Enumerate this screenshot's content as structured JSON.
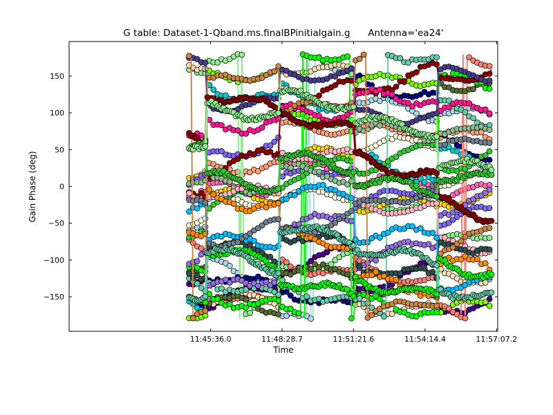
{
  "chart_data": {
    "type": "scatter",
    "title": "G table: Dataset-1-Qband.ms.finalBPinitialgain.g      Antenna='ea24'",
    "xlabel": "Time",
    "ylabel": "Gain Phase (deg)",
    "x_ticks": [
      "11:45:36.0",
      "11:48:28.7",
      "11:51:21.6",
      "11:54:14.4",
      "11:57:07.2"
    ],
    "x_tick_seconds": [
      42336.0,
      42508.7,
      42681.6,
      42854.4,
      43027.2
    ],
    "xlim_seconds": [
      41994,
      43030
    ],
    "xrange_display": [
      "11:44:10",
      "11:57:10"
    ],
    "y_ticks": [
      -150,
      -100,
      -50,
      0,
      50,
      100,
      150
    ],
    "ylim": [
      -197,
      197
    ],
    "grid": false,
    "legend": "none",
    "data_time_range": [
      "11:44:44",
      "11:56:55"
    ],
    "series_colors": [
      "#add8e6",
      "#ffa07a",
      "#90ee90",
      "#000080",
      "#4b0082",
      "#ffd700",
      "#ff69b4",
      "#7cfc00",
      "#00ced1",
      "#fa8072",
      "#f5deb3",
      "#556b2f",
      "#ffffe0",
      "#7b68ee",
      "#00ff00",
      "#66cdaa",
      "#8b0000",
      "#32cd32",
      "#9370db",
      "#8fbc8f",
      "#ff1493",
      "#483d8b",
      "#ffb6c1",
      "#2f4f4f",
      "#00bfff",
      "#cd853f",
      "#ff8c00",
      "#708090"
    ],
    "highlight_series_colors": [
      "#8b0000",
      "#00ff00",
      "#66cdaa",
      "#32cd32",
      "#90ee90"
    ],
    "marker": "circle",
    "phase_wrap_degrees": [
      -180,
      180
    ]
  }
}
